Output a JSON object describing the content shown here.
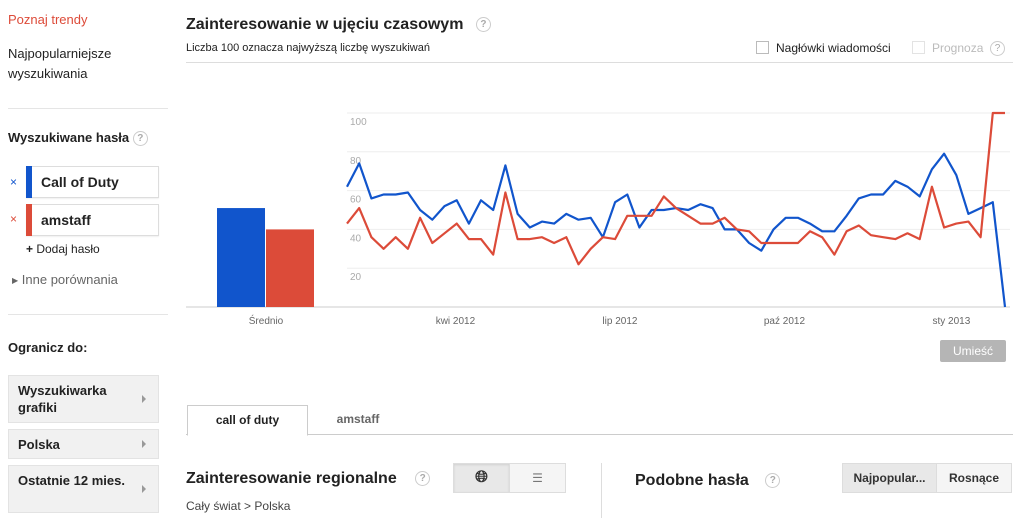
{
  "sidebar": {
    "explore_link": "Poznaj trendy",
    "top_searches": "Najpopularniejsze wyszukiwania",
    "search_terms_title": "Wyszukiwane hasła",
    "terms": [
      {
        "label": "Call of Duty",
        "color": "#1155cc"
      },
      {
        "label": "amstaff",
        "color": "#dc4b39"
      }
    ],
    "add_term": "Dodaj hasło",
    "other_comparisons": "Inne porównania",
    "limit_title": "Ogranicz do:",
    "filters": [
      "Wyszukiwarka grafiki",
      "Polska",
      "Ostatnie 12 mies."
    ]
  },
  "main": {
    "title": "Zainteresowanie w ujęciu czasowym",
    "subtitle": "Liczba 100 oznacza najwyższą liczbę wyszukiwań",
    "news_headlines": "Nagłówki wiadomości",
    "forecast": "Prognoza",
    "embed_button": "Umieść",
    "tabs": [
      "call of duty",
      "amstaff"
    ],
    "regional_title": "Zainteresowanie regionalne",
    "breadcrumb": [
      "Cały świat",
      "Polska"
    ],
    "breadcrumb_sep": ">",
    "related_title": "Podobne hasła",
    "related_buttons": [
      "Najpopular...",
      "Rosnące"
    ]
  },
  "chart_data": {
    "type": "line",
    "ylim": [
      0,
      100
    ],
    "yticks": [
      20,
      40,
      60,
      80,
      100
    ],
    "xtick_labels": [
      "kwi 2012",
      "lip 2012",
      "paź 2012",
      "sty 2013"
    ],
    "grid": true,
    "average_label": "Średnio",
    "series": [
      {
        "name": "Call of Duty",
        "color": "#1155cc",
        "average": 51,
        "values": [
          62,
          74,
          56,
          58,
          58,
          59,
          50,
          45,
          52,
          55,
          43,
          55,
          50,
          73,
          48,
          41,
          44,
          43,
          48,
          45,
          46,
          36,
          54,
          58,
          41,
          50,
          50,
          51,
          50,
          53,
          51,
          40,
          40,
          33,
          29,
          40,
          46,
          46,
          43,
          39,
          39,
          47,
          56,
          58,
          58,
          65,
          62,
          57,
          71,
          79,
          68,
          48,
          51,
          54,
          0
        ]
      },
      {
        "name": "amstaff",
        "color": "#dc4b39",
        "average": 40,
        "values": [
          43,
          51,
          36,
          30,
          36,
          30,
          46,
          33,
          38,
          43,
          35,
          35,
          27,
          59,
          35,
          35,
          36,
          33,
          36,
          22,
          30,
          36,
          35,
          47,
          47,
          47,
          57,
          51,
          47,
          43,
          43,
          46,
          40,
          39,
          33,
          33,
          33,
          33,
          39,
          36,
          27,
          39,
          42,
          37,
          36,
          35,
          38,
          35,
          62,
          41,
          43,
          44,
          36,
          100,
          100
        ]
      }
    ]
  }
}
